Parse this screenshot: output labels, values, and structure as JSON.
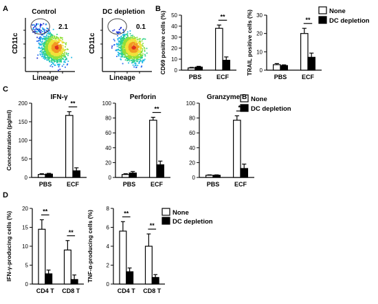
{
  "panel_labels": [
    "A",
    "B",
    "C",
    "D"
  ],
  "flow_plots": [
    {
      "title": "Control",
      "xlabel": "Lineage",
      "ylabel": "CD11c",
      "gate_percent": "2.1"
    },
    {
      "title": "DC depletion",
      "xlabel": "Lineage",
      "ylabel": "CD11c",
      "gate_percent": "0.1"
    }
  ],
  "legends": {
    "B": [
      "None",
      "DC depletion"
    ],
    "C": [
      "None",
      "DC depletion"
    ],
    "D": [
      "None",
      "DC depletion"
    ]
  },
  "colors": {
    "none": "#ffffff",
    "dc_depletion": "#000000",
    "outline": "#000000"
  },
  "chart_data": [
    {
      "type": "bar",
      "panel": "B",
      "title": "",
      "ylabel": "CD69 positive cells (%)",
      "categories": [
        "PBS",
        "ECF"
      ],
      "ylim": [
        0,
        50
      ],
      "yticks": [
        0,
        10,
        20,
        30,
        40,
        50
      ],
      "series": [
        {
          "name": "None",
          "values": [
            2,
            38
          ],
          "errors": [
            0.5,
            3
          ]
        },
        {
          "name": "DC depletion",
          "values": [
            2.8,
            9
          ],
          "errors": [
            0.7,
            3
          ]
        }
      ],
      "significance": [
        {
          "category": "ECF",
          "label": "**"
        }
      ]
    },
    {
      "type": "bar",
      "panel": "B",
      "title": "",
      "ylabel": "TRAIL positive cells (%)",
      "categories": [
        "PBS",
        "ECF"
      ],
      "ylim": [
        0,
        30
      ],
      "yticks": [
        0,
        10,
        20,
        30
      ],
      "series": [
        {
          "name": "None",
          "values": [
            3,
            20
          ],
          "errors": [
            0.6,
            2.8
          ]
        },
        {
          "name": "DC depletion",
          "values": [
            2.5,
            7
          ],
          "errors": [
            0.4,
            2.3
          ]
        }
      ],
      "significance": [
        {
          "category": "ECF",
          "label": "**"
        }
      ]
    },
    {
      "type": "bar",
      "panel": "C",
      "title": "IFN-γ",
      "ylabel": "Concentration (pg/ml)",
      "categories": [
        "PBS",
        "ECF"
      ],
      "ylim": [
        0,
        200
      ],
      "yticks": [
        0,
        50,
        100,
        150,
        200
      ],
      "series": [
        {
          "name": "None",
          "values": [
            8,
            167
          ],
          "errors": [
            2,
            10
          ]
        },
        {
          "name": "DC depletion",
          "values": [
            9,
            18
          ],
          "errors": [
            2,
            8
          ]
        }
      ],
      "significance": [
        {
          "category": "ECF",
          "label": "**"
        }
      ]
    },
    {
      "type": "bar",
      "panel": "C",
      "title": "Perforin",
      "ylabel": "",
      "categories": [
        "PBS",
        "ECF"
      ],
      "ylim": [
        0,
        100
      ],
      "yticks": [
        0,
        20,
        40,
        60,
        80,
        100
      ],
      "series": [
        {
          "name": "None",
          "values": [
            4,
            77
          ],
          "errors": [
            1,
            4
          ]
        },
        {
          "name": "DC depletion",
          "values": [
            6,
            17
          ],
          "errors": [
            2,
            5
          ]
        }
      ],
      "significance": [
        {
          "category": "ECF",
          "label": "**"
        }
      ]
    },
    {
      "type": "bar",
      "panel": "C",
      "title": "Granzyme B",
      "ylabel": "",
      "categories": [
        "PBS",
        "ECF"
      ],
      "ylim": [
        0,
        100
      ],
      "yticks": [
        0,
        20,
        40,
        60,
        80,
        100
      ],
      "series": [
        {
          "name": "None",
          "values": [
            3,
            77
          ],
          "errors": [
            0.5,
            6
          ]
        },
        {
          "name": "DC depletion",
          "values": [
            3,
            12
          ],
          "errors": [
            0.5,
            6
          ]
        }
      ],
      "significance": [
        {
          "category": "ECF",
          "label": "**"
        }
      ]
    },
    {
      "type": "bar",
      "panel": "D",
      "title": "",
      "ylabel": "IFN-γ-producing cells (%)",
      "categories": [
        "CD4 T",
        "CD8 T"
      ],
      "ylim": [
        0,
        20
      ],
      "yticks": [
        0,
        5,
        10,
        15,
        20
      ],
      "series": [
        {
          "name": "None",
          "values": [
            14.5,
            9
          ],
          "errors": [
            2.5,
            2.5
          ]
        },
        {
          "name": "DC depletion",
          "values": [
            2.7,
            1.2
          ],
          "errors": [
            1,
            1.2
          ]
        }
      ],
      "significance": [
        {
          "category": "CD4 T",
          "label": "**"
        },
        {
          "category": "CD8 T",
          "label": "**"
        }
      ]
    },
    {
      "type": "bar",
      "panel": "D",
      "title": "",
      "ylabel": "TNF-α-producing cells (%)",
      "categories": [
        "CD4 T",
        "CD8 T"
      ],
      "ylim": [
        0,
        8
      ],
      "yticks": [
        0,
        2,
        4,
        6,
        8
      ],
      "series": [
        {
          "name": "None",
          "values": [
            5.6,
            4
          ],
          "errors": [
            1,
            1.3
          ]
        },
        {
          "name": "DC depletion",
          "values": [
            1.3,
            0.7
          ],
          "errors": [
            0.4,
            0.3
          ]
        }
      ],
      "significance": [
        {
          "category": "CD4 T",
          "label": "**"
        },
        {
          "category": "CD8 T",
          "label": "**"
        }
      ]
    }
  ]
}
